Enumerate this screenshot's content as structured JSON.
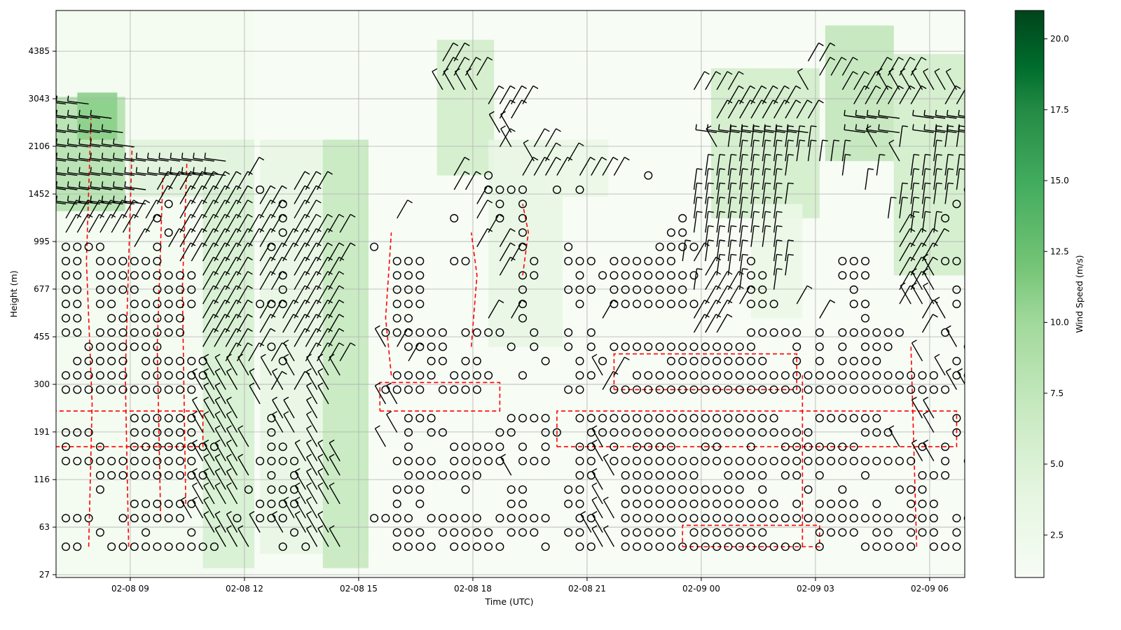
{
  "chart_data": {
    "type": "heatmap",
    "title": "",
    "xlabel": "Time (UTC)",
    "ylabel": "Height (m)",
    "colorbar_label": "Wind Speed (m/s)",
    "colorbar_range": [
      1.0,
      21.0
    ],
    "colorbar_ticks": [
      "2.5",
      "5.0",
      "7.5",
      "10.0",
      "12.5",
      "15.0",
      "17.5",
      "20.0"
    ],
    "colormap_stops": [
      [
        1,
        "#f7fcf5"
      ],
      [
        4,
        "#e5f5e0"
      ],
      [
        7,
        "#c7e9c0"
      ],
      [
        10,
        "#a1d99b"
      ],
      [
        12,
        "#74c476"
      ],
      [
        15,
        "#41ab5d"
      ],
      [
        17.5,
        "#238b45"
      ],
      [
        19,
        "#006d2c"
      ],
      [
        21,
        "#00441b"
      ]
    ],
    "time_step_minutes": 18,
    "x_range_steps": [
      -0.86,
      78.7
    ],
    "x_ticks": [
      {
        "label": "02-08 09",
        "step": 5.64
      },
      {
        "label": "02-08 12",
        "step": 15.64
      },
      {
        "label": "02-08 15",
        "step": 25.64
      },
      {
        "label": "02-08 18",
        "step": 35.64
      },
      {
        "label": "02-08 21",
        "step": 45.64
      },
      {
        "label": "02-09 00",
        "step": 55.64
      },
      {
        "label": "02-09 03",
        "step": 65.64
      },
      {
        "label": "02-09 06",
        "step": 75.64
      }
    ],
    "y_range_levels": [
      -2.16,
      37.55
    ],
    "y_ticks": [
      {
        "label": "27",
        "level": -1.96
      },
      {
        "label": "63",
        "level": 1.37
      },
      {
        "label": "116",
        "level": 4.7
      },
      {
        "label": "191",
        "level": 8.04
      },
      {
        "label": "300",
        "level": 11.37
      },
      {
        "label": "455",
        "level": 14.7
      },
      {
        "label": "677",
        "level": 18.04
      },
      {
        "label": "995",
        "level": 21.37
      },
      {
        "label": "1452",
        "level": 24.7
      },
      {
        "label": "2106",
        "level": 28.04
      },
      {
        "label": "3043",
        "level": 31.37
      },
      {
        "label": "4385",
        "level": 34.7
      }
    ],
    "barb_legend": {
      "o": "calm",
      "r": "barb staff toward upper-right",
      "l": "barb staff toward upper-left",
      "h": "barb staff near-horizontal",
      "v": "barb staff near-vertical",
      ".": "no data"
    },
    "barb_rows": [
      "oo..oooooooooolll..o.olll....oooo.ooooo...o..oolloooooooooooooooo.o...ooooo.ooo..",
      "...o...o...o.lll.l.lolll.....ooo.ooooo.ooo..ooll.ooooo.ooooooo....oooo.oo.ooo.o",
      "ooo..oooooolll.o.ooolll....oooo.ooooo.ooooo..oolloooooooooooooooooooooooooooo.oooo",
      "......oooooollll.oooollll....o.o.......oo...oo.l.oooooooooooooo.o.oooo.o..ooo..",
      "...o........llllo.ooolll.....ooo...o...oo...oo.l.ooooooooooo.o...o..o....ooo..",
      "...oooooooooollll.o.o.lll.....ooooooo..l.....oo.looooooo..oooo.oo.o...o....ooo..",
      "oooooooooooollll.oooollll....oooo.ooooo.ooo..oolooooooooooooooooooooooooooollo.o",
      "o..o..oooooooolll.oo..l.....l.o...ooooo.o.o..oolo.oooo..oo..o..ooooooo...l.o.o..",
      "ooo...oooooollll..oll.l......lo oo....oo..oo..oooooooooooooooooooo....ooo...l.o...",
      "......oooooollll..oll.l.......ooo......oooo..oooooooooooooooooo...oooooo...ll.o..",
      ".............ll..l....ll....ll...................................................l....",
      "oooooooooooollll.lrlr.ll....oooo.oooo.......oo.roooooooooooooooooooooooooooooollooo",
      "oooooo.oooooollll.l.l.lll....oooo.oooo..o....oolr.ooooooooooooooooooooooooooolooo.",
      ".ooooo.oooooo.rrr.rolrrrr.....r.oo.oo.....o..o.o.....ooooooooo..o.o.oooo...l..o.",
      "..ooooooo...rrrr.ro.rrrr....lroooo.....o.o..o.o.ooooooooooooo...o.o.o.ooo.....lo",
      "oo.oooooooo.rrrr.r.rrrrr....oooooo.oooo..o..o.o........rrr..ooooo.o.oooooo.r.o.",
      "oo..ooooooo.rrrr.rrrrrrr.....oo......r.ro......r.......rrr........r...o....r.l..",
      "oo.oo.oooooorrrr.ooorrrr.....ooo........o....o..oooooooorrrrooo.r....oo..rlll.o",
      "oo.oooo.oooorrrr.rrorrrr.....ooo........o...ooo.ooooooovrrrvoov......o...rrll.o",
      "oo.ooooooooorrrr.rrorrrr.....ooo......r.oo...o.ooooooooorvvvoovv....ooo..rrrl..",
      "oo.oooooo.rrrrrr.rrrrrrrr....ooo..oo..rr.o..ooo.oooooovrvvvvo.vv....ooo..rrr.oo",
      "oooo..r.orrrrrrrrrorrrr....o........r.r.o...o.......oooovvvvvvv..........rrrr..",
      "rrrrrr.r.orrrrrrrrrorrrrr............r..o............oovvvvvvvv..........rvvv..",
      "rrrrrrrro.rrrrrr.rrorr.......r....o.r.o.o.............ovvvvvvvv.........vvvv.o",
      "hhhhhhhhrorrrrrr.rrorr..............r.o.o..............vvvvvvvvv.........vvvvvo",
      "hhhhhhhhrrrrrrrr.o..rrr...........rr.oooo..o.o.........vvvvvvvv.......v...vvvvvo",
      "hhhhhhhhhhhhhhh.r.................r..o..rrrr.rrrr..o....vvvvvvvv....v..v..vvvvvv.",
      "hhhhhhhhhhhhhhh..........................lr.r..............vvvvvvvvvv....l..v..vvvvvvv",
      "hhhhhhh...............................rl.rr..............lvvvvvvvv.....l.v..vvvvvv.",
      "hhhhhh................................ll.................hhhhhhhhh....hhhh..hhhhhh.",
      "hhhhh.................................rr.................rrrrrrrrr....hhhh..hhhhhh.",
      "hhh..................................rrrr.................rrrrrr.....rrrrrr..rrrrrr.",
      ".................................llll..................rrrr......l..rrr.lllllll.",
      ".................................rrrr.............................rrr..rrrr...",
      ".................................rr..............................rr........."
    ],
    "speed_patches": [
      {
        "steps": [
          -0.9,
          16.5
        ],
        "levels": [
          -2.2,
          37.6
        ],
        "speed": 1.6
      },
      {
        "steps": [
          -0.9,
          5.2
        ],
        "levels": [
          23.5,
          31.5
        ],
        "speed": 8.5
      },
      {
        "steps": [
          1,
          4.5
        ],
        "levels": [
          28.5,
          31.8
        ],
        "speed": 11
      },
      {
        "steps": [
          5.5,
          16.5
        ],
        "levels": [
          24.5,
          28.5
        ],
        "speed": 4.5
      },
      {
        "steps": [
          12,
          16.5
        ],
        "levels": [
          -1.5,
          25
        ],
        "speed": 5.5
      },
      {
        "steps": [
          17,
          26.5
        ],
        "levels": [
          -0.5,
          28.5
        ],
        "speed": 3.5
      },
      {
        "steps": [
          22.5,
          26.5
        ],
        "levels": [
          -1.5,
          28.5
        ],
        "speed": 7
      },
      {
        "steps": [
          32.5,
          37.5
        ],
        "levels": [
          26,
          35.5
        ],
        "speed": 6
      },
      {
        "steps": [
          37,
          43.5
        ],
        "levels": [
          14,
          28.5
        ],
        "speed": 3.5
      },
      {
        "steps": [
          42,
          47.5
        ],
        "levels": [
          24.5,
          28.5
        ],
        "speed": 3
      },
      {
        "steps": [
          56.5,
          66
        ],
        "levels": [
          23,
          33.5
        ],
        "speed": 6
      },
      {
        "steps": [
          60,
          64.5
        ],
        "levels": [
          16,
          24
        ],
        "speed": 3
      },
      {
        "steps": [
          66.5,
          72.5
        ],
        "levels": [
          27,
          36.5
        ],
        "speed": 7.5
      },
      {
        "steps": [
          72.5,
          78.7
        ],
        "levels": [
          19,
          34.5
        ],
        "speed": 6
      }
    ],
    "dashed_contours": [
      [
        [
          -0.9,
          7
        ],
        [
          12,
          7
        ],
        [
          12,
          9.5
        ],
        [
          -0.9,
          9.5
        ]
      ],
      [
        [
          27.5,
          9.5
        ],
        [
          38,
          9.5
        ],
        [
          38,
          11.5
        ],
        [
          27.5,
          11.5
        ],
        [
          27.5,
          9.5
        ]
      ],
      [
        [
          43,
          7
        ],
        [
          78,
          7
        ],
        [
          78,
          9.5
        ],
        [
          43,
          9.5
        ],
        [
          43,
          7
        ]
      ],
      [
        [
          48,
          11
        ],
        [
          64,
          11
        ],
        [
          64,
          13.5
        ],
        [
          48,
          13.5
        ],
        [
          48,
          11
        ]
      ],
      [
        [
          54,
          0
        ],
        [
          66,
          0
        ],
        [
          66,
          1.5
        ],
        [
          54,
          1.5
        ],
        [
          54,
          0
        ]
      ],
      [
        [
          2,
          0
        ],
        [
          2.3,
          10
        ],
        [
          1.8,
          20
        ],
        [
          2.2,
          30
        ]
      ],
      [
        [
          5.5,
          0
        ],
        [
          5.2,
          12
        ],
        [
          5.8,
          28
        ]
      ],
      [
        [
          8.3,
          2
        ],
        [
          8,
          14
        ],
        [
          8.5,
          26
        ]
      ],
      [
        [
          10.5,
          3
        ],
        [
          10.2,
          18
        ],
        [
          10.6,
          27
        ]
      ],
      [
        [
          28.5,
          12
        ],
        [
          28,
          16
        ],
        [
          28.5,
          22
        ]
      ],
      [
        [
          64.5,
          0
        ],
        [
          64.5,
          12
        ]
      ],
      [
        [
          74.5,
          0
        ],
        [
          74,
          14
        ]
      ],
      [
        [
          35.5,
          14
        ],
        [
          36,
          19
        ],
        [
          35.5,
          22
        ]
      ],
      [
        [
          40,
          19
        ],
        [
          40.5,
          22
        ],
        [
          40,
          24
        ]
      ]
    ]
  }
}
